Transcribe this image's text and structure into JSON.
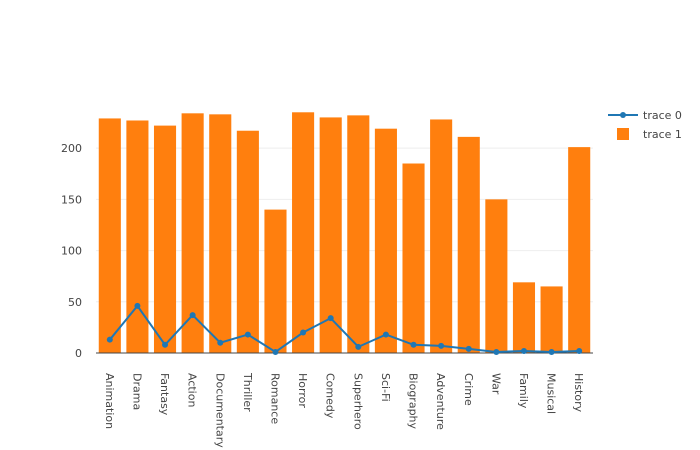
{
  "chart_data": {
    "type": "bar",
    "categories": [
      "Animation",
      "Drama",
      "Fantasy",
      "Action",
      "Documentary",
      "Thriller",
      "Romance",
      "Horror",
      "Comedy",
      "Superhero",
      "Sci-Fi",
      "Biography",
      "Adventure",
      "Crime",
      "War",
      "Family",
      "Musical",
      "History"
    ],
    "series": [
      {
        "name": "trace 0",
        "type": "line",
        "color": "#1f77b4",
        "values": [
          13,
          46,
          8,
          37,
          10,
          18,
          1,
          20,
          34,
          6,
          18,
          8,
          7,
          4,
          1,
          2,
          1,
          2
        ]
      },
      {
        "name": "trace 1",
        "type": "bar",
        "color": "#ff7f0e",
        "values": [
          229,
          227,
          222,
          234,
          233,
          217,
          140,
          235,
          230,
          232,
          219,
          185,
          228,
          211,
          150,
          69,
          65,
          201
        ]
      }
    ],
    "yticks": [
      "0",
      "50",
      "100",
      "150",
      "200"
    ],
    "ylim": [
      0,
      247
    ],
    "grid": true,
    "legend_position": "top-right"
  }
}
